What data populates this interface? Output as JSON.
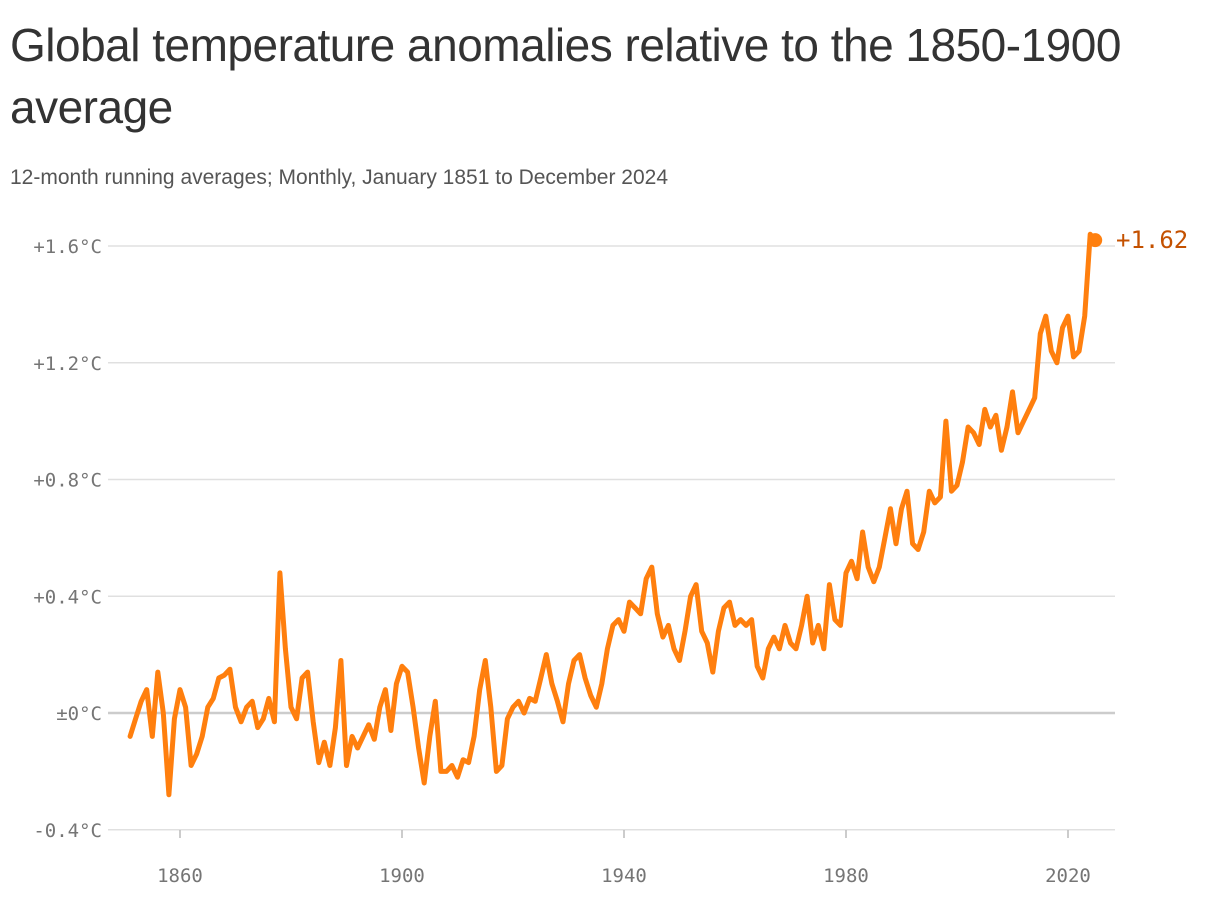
{
  "title": "Global temperature anomalies relative to the 1850-1900 average",
  "subtitle": "12-month running averages; Monthly, January 1851 to December 2024",
  "colors": {
    "line": "#ff7f0e",
    "label": "#c45100",
    "grid": "#e0e0e0",
    "zero": "#cccccc",
    "text": "#333333"
  },
  "chart_data": {
    "type": "line",
    "title": "Global temperature anomalies relative to the 1850-1900 average",
    "subtitle": "12-month running averages; Monthly, January 1851 to December 2024",
    "xlabel": "",
    "ylabel": "",
    "xlim": [
      1851,
      2025
    ],
    "ylim": [
      -0.4,
      1.6
    ],
    "grid": true,
    "x_ticks": [
      1860,
      1900,
      1940,
      1980,
      2020
    ],
    "x_tick_labels": [
      "1860",
      "1900",
      "1940",
      "1980",
      "2020"
    ],
    "y_ticks": [
      -0.4,
      0,
      0.4,
      0.8,
      1.2,
      1.6
    ],
    "y_tick_labels": [
      "-0.4°C",
      "±0°C",
      "+0.4°C",
      "+0.8°C",
      "+1.2°C",
      "+1.6°C"
    ],
    "end_label": "+1.62",
    "series": [
      {
        "values": [
          [
            1851,
            -0.08
          ],
          [
            1852,
            -0.02
          ],
          [
            1853,
            0.04
          ],
          [
            1854,
            0.08
          ],
          [
            1855,
            -0.08
          ],
          [
            1856,
            0.14
          ],
          [
            1857,
            0.0
          ],
          [
            1858,
            -0.28
          ],
          [
            1859,
            -0.02
          ],
          [
            1860,
            0.08
          ],
          [
            1861,
            0.02
          ],
          [
            1862,
            -0.18
          ],
          [
            1863,
            -0.14
          ],
          [
            1864,
            -0.08
          ],
          [
            1865,
            0.02
          ],
          [
            1866,
            0.05
          ],
          [
            1867,
            0.12
          ],
          [
            1868,
            0.13
          ],
          [
            1869,
            0.15
          ],
          [
            1870,
            0.02
          ],
          [
            1871,
            -0.03
          ],
          [
            1872,
            0.02
          ],
          [
            1873,
            0.04
          ],
          [
            1874,
            -0.05
          ],
          [
            1875,
            -0.02
          ],
          [
            1876,
            0.05
          ],
          [
            1877,
            -0.03
          ],
          [
            1878,
            0.48
          ],
          [
            1879,
            0.22
          ],
          [
            1880,
            0.02
          ],
          [
            1881,
            -0.02
          ],
          [
            1882,
            0.12
          ],
          [
            1883,
            0.14
          ],
          [
            1884,
            -0.03
          ],
          [
            1885,
            -0.17
          ],
          [
            1886,
            -0.1
          ],
          [
            1887,
            -0.18
          ],
          [
            1888,
            -0.05
          ],
          [
            1889,
            0.18
          ],
          [
            1890,
            -0.18
          ],
          [
            1891,
            -0.08
          ],
          [
            1892,
            -0.12
          ],
          [
            1893,
            -0.08
          ],
          [
            1894,
            -0.04
          ],
          [
            1895,
            -0.09
          ],
          [
            1896,
            0.02
          ],
          [
            1897,
            0.08
          ],
          [
            1898,
            -0.06
          ],
          [
            1899,
            0.1
          ],
          [
            1900,
            0.16
          ],
          [
            1901,
            0.14
          ],
          [
            1902,
            0.02
          ],
          [
            1903,
            -0.12
          ],
          [
            1904,
            -0.24
          ],
          [
            1905,
            -0.08
          ],
          [
            1906,
            0.04
          ],
          [
            1907,
            -0.2
          ],
          [
            1908,
            -0.2
          ],
          [
            1909,
            -0.18
          ],
          [
            1910,
            -0.22
          ],
          [
            1911,
            -0.16
          ],
          [
            1912,
            -0.17
          ],
          [
            1913,
            -0.08
          ],
          [
            1914,
            0.08
          ],
          [
            1915,
            0.18
          ],
          [
            1916,
            0.02
          ],
          [
            1917,
            -0.2
          ],
          [
            1918,
            -0.18
          ],
          [
            1919,
            -0.02
          ],
          [
            1920,
            0.02
          ],
          [
            1921,
            0.04
          ],
          [
            1922,
            0.0
          ],
          [
            1923,
            0.05
          ],
          [
            1924,
            0.04
          ],
          [
            1925,
            0.12
          ],
          [
            1926,
            0.2
          ],
          [
            1927,
            0.1
          ],
          [
            1928,
            0.04
          ],
          [
            1929,
            -0.03
          ],
          [
            1930,
            0.1
          ],
          [
            1931,
            0.18
          ],
          [
            1932,
            0.2
          ],
          [
            1933,
            0.12
          ],
          [
            1934,
            0.06
          ],
          [
            1935,
            0.02
          ],
          [
            1936,
            0.1
          ],
          [
            1937,
            0.22
          ],
          [
            1938,
            0.3
          ],
          [
            1939,
            0.32
          ],
          [
            1940,
            0.28
          ],
          [
            1941,
            0.38
          ],
          [
            1942,
            0.36
          ],
          [
            1943,
            0.34
          ],
          [
            1944,
            0.46
          ],
          [
            1945,
            0.5
          ],
          [
            1946,
            0.34
          ],
          [
            1947,
            0.26
          ],
          [
            1948,
            0.3
          ],
          [
            1949,
            0.22
          ],
          [
            1950,
            0.18
          ],
          [
            1951,
            0.28
          ],
          [
            1952,
            0.4
          ],
          [
            1953,
            0.44
          ],
          [
            1954,
            0.28
          ],
          [
            1955,
            0.24
          ],
          [
            1956,
            0.14
          ],
          [
            1957,
            0.28
          ],
          [
            1958,
            0.36
          ],
          [
            1959,
            0.38
          ],
          [
            1960,
            0.3
          ],
          [
            1961,
            0.32
          ],
          [
            1962,
            0.3
          ],
          [
            1963,
            0.32
          ],
          [
            1964,
            0.16
          ],
          [
            1965,
            0.12
          ],
          [
            1966,
            0.22
          ],
          [
            1967,
            0.26
          ],
          [
            1968,
            0.22
          ],
          [
            1969,
            0.3
          ],
          [
            1970,
            0.24
          ],
          [
            1971,
            0.22
          ],
          [
            1972,
            0.3
          ],
          [
            1973,
            0.4
          ],
          [
            1974,
            0.24
          ],
          [
            1975,
            0.3
          ],
          [
            1976,
            0.22
          ],
          [
            1977,
            0.44
          ],
          [
            1978,
            0.32
          ],
          [
            1979,
            0.3
          ],
          [
            1980,
            0.48
          ],
          [
            1981,
            0.52
          ],
          [
            1982,
            0.46
          ],
          [
            1983,
            0.62
          ],
          [
            1984,
            0.5
          ],
          [
            1985,
            0.45
          ],
          [
            1986,
            0.5
          ],
          [
            1987,
            0.6
          ],
          [
            1988,
            0.7
          ],
          [
            1989,
            0.58
          ],
          [
            1990,
            0.7
          ],
          [
            1991,
            0.76
          ],
          [
            1992,
            0.58
          ],
          [
            1993,
            0.56
          ],
          [
            1994,
            0.62
          ],
          [
            1995,
            0.76
          ],
          [
            1996,
            0.72
          ],
          [
            1997,
            0.74
          ],
          [
            1998,
            1.0
          ],
          [
            1999,
            0.76
          ],
          [
            2000,
            0.78
          ],
          [
            2001,
            0.86
          ],
          [
            2002,
            0.98
          ],
          [
            2003,
            0.96
          ],
          [
            2004,
            0.92
          ],
          [
            2005,
            1.04
          ],
          [
            2006,
            0.98
          ],
          [
            2007,
            1.02
          ],
          [
            2008,
            0.9
          ],
          [
            2009,
            0.98
          ],
          [
            2010,
            1.1
          ],
          [
            2011,
            0.96
          ],
          [
            2012,
            1.0
          ],
          [
            2013,
            1.04
          ],
          [
            2014,
            1.08
          ],
          [
            2015,
            1.3
          ],
          [
            2016,
            1.36
          ],
          [
            2017,
            1.24
          ],
          [
            2018,
            1.2
          ],
          [
            2019,
            1.32
          ],
          [
            2020,
            1.36
          ],
          [
            2021,
            1.22
          ],
          [
            2022,
            1.24
          ],
          [
            2023,
            1.36
          ],
          [
            2024,
            1.64
          ],
          [
            2024.9,
            1.62
          ]
        ]
      }
    ]
  }
}
